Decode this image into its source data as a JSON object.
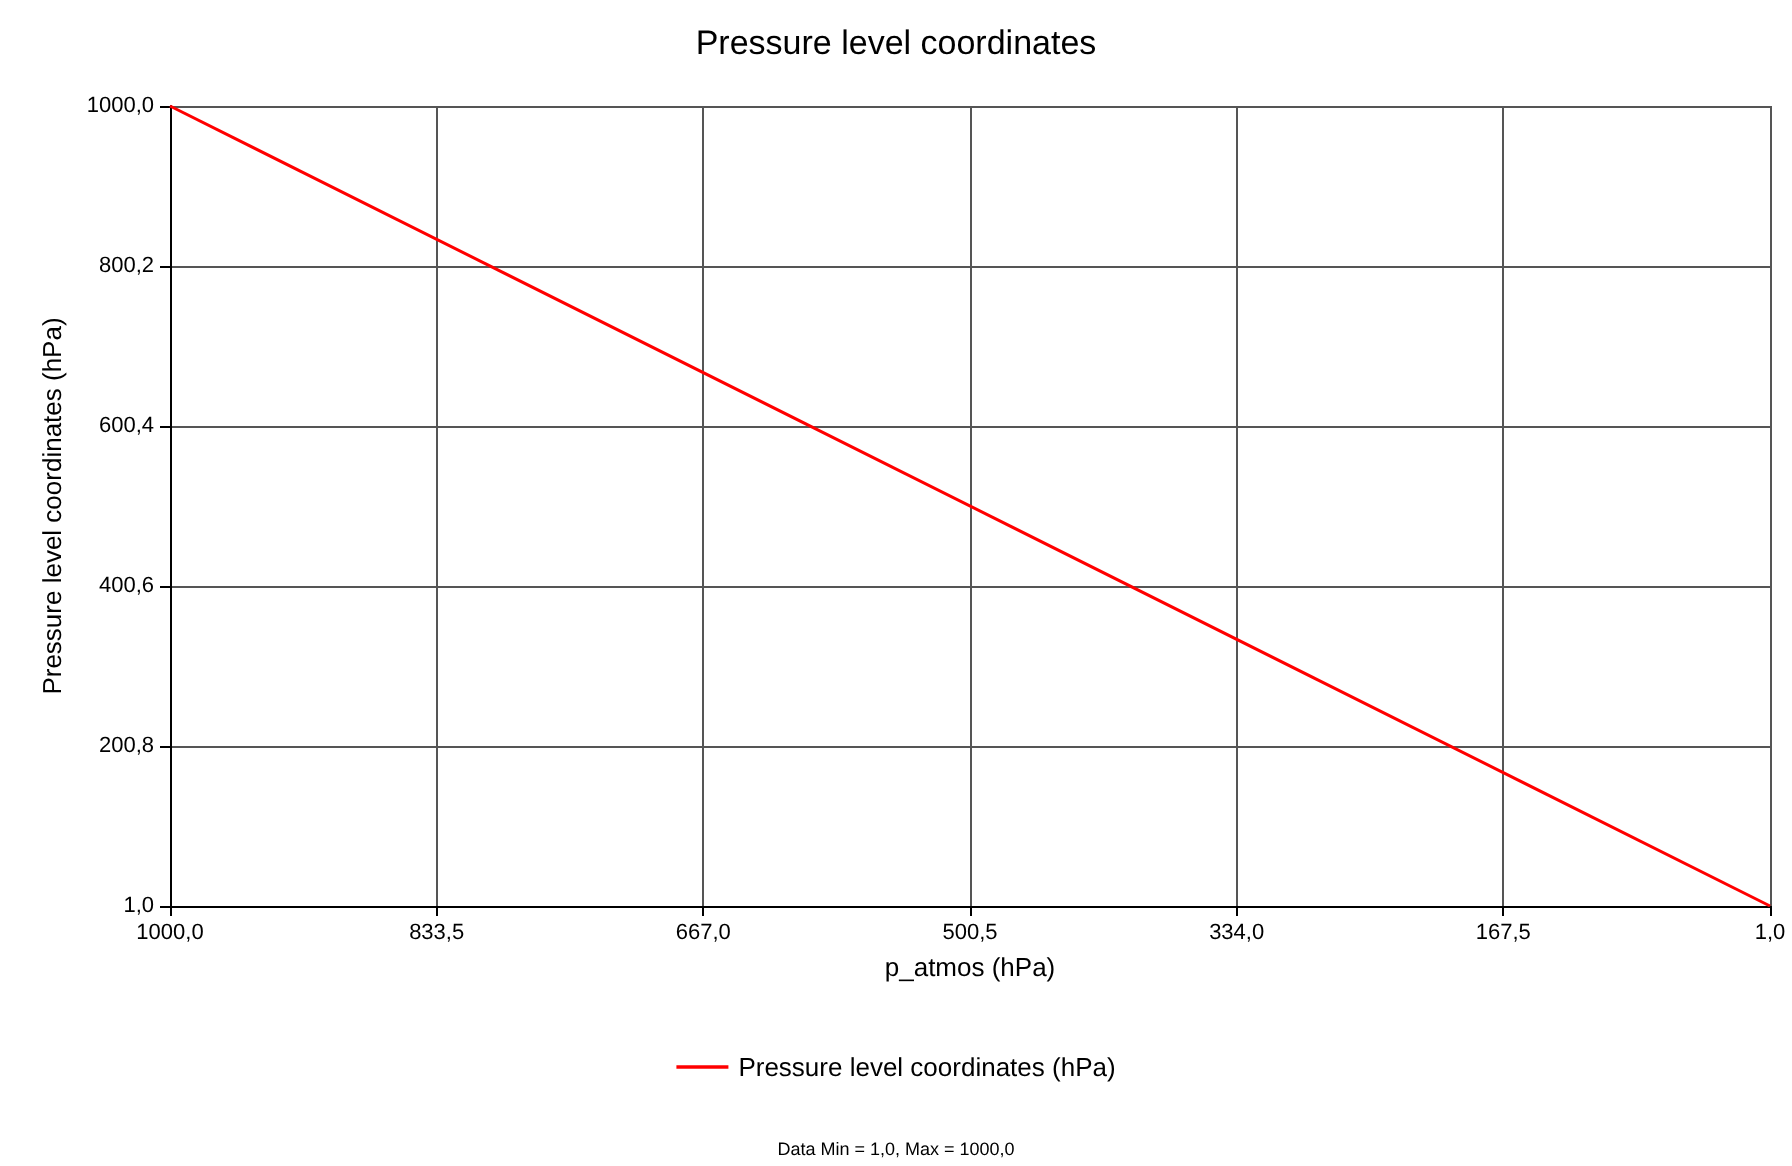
{
  "chart_data": {
    "type": "line",
    "title": "Pressure level coordinates",
    "xlabel": "p_atmos (hPa)",
    "ylabel": "Pressure level coordinates (hPa)",
    "x": [
      1000,
      1
    ],
    "series": [
      {
        "name": "Pressure level coordinates (hPa)",
        "color": "#ff0000",
        "values": [
          1000,
          1
        ]
      }
    ],
    "xlim": [
      1000,
      1
    ],
    "xticks": [
      {
        "value": 1000,
        "label": "1000,0"
      },
      {
        "value": 833.5,
        "label": "833,5"
      },
      {
        "value": 667,
        "label": "667,0"
      },
      {
        "value": 500.5,
        "label": "500,5"
      },
      {
        "value": 334,
        "label": "334,0"
      },
      {
        "value": 167.5,
        "label": "167,5"
      },
      {
        "value": 1,
        "label": "1,0"
      }
    ],
    "ylim": [
      1,
      1000
    ],
    "yticks": [
      {
        "value": 1,
        "label": "1,0"
      },
      {
        "value": 200.8,
        "label": "200,8"
      },
      {
        "value": 400.6,
        "label": "400,6"
      },
      {
        "value": 600.4,
        "label": "600,4"
      },
      {
        "value": 800.2,
        "label": "800,2"
      },
      {
        "value": 1000,
        "label": "1000,0"
      }
    ],
    "grid": true,
    "legend": "bottom",
    "marker": "none",
    "line_style": "solid",
    "annotations": [
      "Data Min = 1,0, Max = 1000,0"
    ]
  }
}
